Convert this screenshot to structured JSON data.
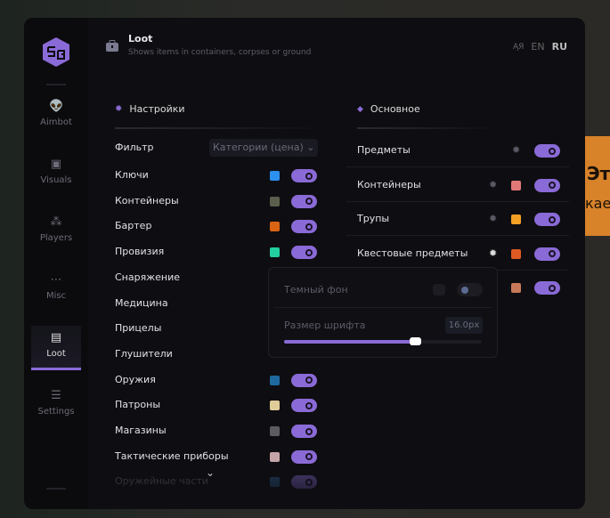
{
  "background": {
    "line1": "Эт",
    "line2": "кае",
    "color": "#d8822a"
  },
  "sidebar": {
    "items": [
      {
        "label": "Aimbot",
        "icon": "alien-icon"
      },
      {
        "label": "Visuals",
        "icon": "vr-headset-icon"
      },
      {
        "label": "Players",
        "icon": "users-icon"
      },
      {
        "label": "Misc",
        "icon": "dots-icon"
      },
      {
        "label": "Loot",
        "icon": "briefcase-icon",
        "active": true
      },
      {
        "label": "Settings",
        "icon": "list-icon"
      }
    ]
  },
  "header": {
    "title": "Loot",
    "subtitle": "Shows items in containers, corpses or ground",
    "lang": [
      "EN",
      "RU"
    ],
    "active_lang": "RU"
  },
  "accent": "#8a6ad6",
  "settings": {
    "title": "Настройки",
    "filter_label": "Фильтр",
    "filter_value": "Категории (цена)",
    "items": [
      {
        "label": "Ключи",
        "color": "#2d8ff0",
        "on": true
      },
      {
        "label": "Контейнеры",
        "color": "#5a5e4c",
        "on": true
      },
      {
        "label": "Бартер",
        "color": "#d96414",
        "on": true
      },
      {
        "label": "Провизия",
        "color": "#22d0a0",
        "on": true
      },
      {
        "label": "Снаряжение"
      },
      {
        "label": "Медицина"
      },
      {
        "label": "Прицелы"
      },
      {
        "label": "Глушители"
      },
      {
        "label": "Оружия",
        "color": "#1e6a9e",
        "on": true
      },
      {
        "label": "Патроны",
        "color": "#e0cc98",
        "on": true
      },
      {
        "label": "Магазины",
        "color": "#5c5c60",
        "on": true
      },
      {
        "label": "Тактические приборы",
        "color": "#c4a4a8",
        "on": true
      },
      {
        "label": "Оружейные части",
        "color": "#1a3048",
        "on": true
      }
    ]
  },
  "main": {
    "title": "Основное",
    "items": [
      {
        "label": "Предметы",
        "on": true
      },
      {
        "label": "Контейнеры",
        "color": "#e07878",
        "on": true
      },
      {
        "label": "Трупы",
        "color": "#f4a024",
        "on": true
      },
      {
        "label": "Квестовые предметы",
        "color": "#e05a24",
        "on": true
      },
      {
        "label": "",
        "color": "#c87a58",
        "on": true
      }
    ]
  },
  "popup": {
    "dark_bg_label": "Темный фон",
    "dark_bg_on": false,
    "font_size_label": "Размер шрифта",
    "font_size_value": "16.0px",
    "font_size_fraction": 0.66
  }
}
